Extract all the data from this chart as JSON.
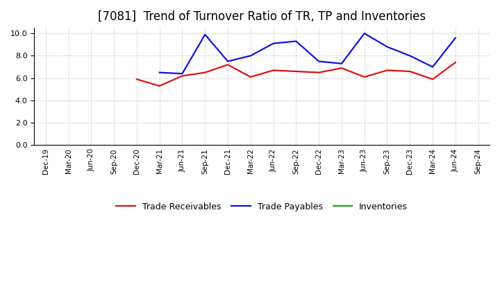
{
  "title": "[7081]  Trend of Turnover Ratio of TR, TP and Inventories",
  "title_fontsize": 12,
  "title_fontweight": "normal",
  "ylim": [
    0.0,
    10.5
  ],
  "yticks": [
    0.0,
    2.0,
    4.0,
    6.0,
    8.0,
    10.0
  ],
  "background_color": "#ffffff",
  "grid_color": "#aaaaaa",
  "x_labels": [
    "Dec-19",
    "Mar-20",
    "Jun-20",
    "Sep-20",
    "Dec-20",
    "Mar-21",
    "Jun-21",
    "Sep-21",
    "Dec-21",
    "Mar-22",
    "Jun-22",
    "Sep-22",
    "Dec-22",
    "Mar-23",
    "Jun-23",
    "Sep-23",
    "Dec-23",
    "Mar-24",
    "Jun-24",
    "Sep-24"
  ],
  "trade_receivables": [
    null,
    null,
    null,
    null,
    5.9,
    5.3,
    6.2,
    6.5,
    7.2,
    6.1,
    6.7,
    6.6,
    6.5,
    6.9,
    6.1,
    6.7,
    6.6,
    5.9,
    7.4,
    null
  ],
  "trade_payables": [
    null,
    null,
    null,
    null,
    null,
    6.5,
    6.4,
    9.9,
    7.5,
    8.0,
    9.1,
    9.3,
    7.5,
    7.3,
    10.0,
    8.8,
    8.0,
    7.0,
    9.6,
    null
  ],
  "inventories": [
    null,
    null,
    null,
    null,
    null,
    null,
    null,
    null,
    null,
    null,
    null,
    null,
    null,
    null,
    null,
    null,
    null,
    null,
    null,
    null
  ],
  "line_colors": {
    "trade_receivables": "#dd1111",
    "trade_payables": "#1111dd",
    "inventories": "#11aa11"
  },
  "line_width": 1.6,
  "legend_labels": [
    "Trade Receivables",
    "Trade Payables",
    "Inventories"
  ]
}
